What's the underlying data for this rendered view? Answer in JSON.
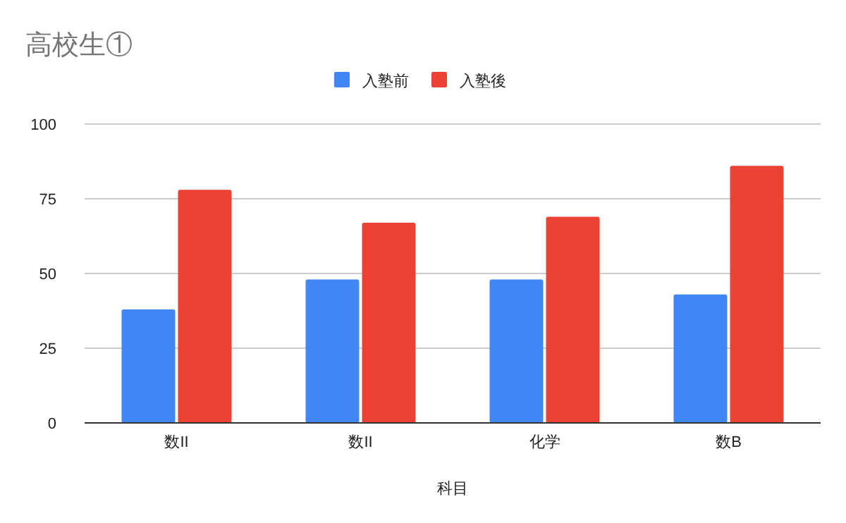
{
  "chart_data": {
    "type": "bar",
    "title": "高校生①",
    "xlabel": "科目",
    "categories": [
      "数II",
      "数II",
      "化学",
      "数B"
    ],
    "series": [
      {
        "name": "入塾前",
        "color": "#4285f4",
        "values": [
          38,
          48,
          48,
          43
        ]
      },
      {
        "name": "入塾後",
        "color": "#ea4335",
        "values": [
          78,
          67,
          69,
          86
        ]
      }
    ],
    "ylim": [
      0,
      100
    ],
    "yticks": [
      0,
      25,
      50,
      75,
      100
    ],
    "grid": "y",
    "legend": "top"
  }
}
